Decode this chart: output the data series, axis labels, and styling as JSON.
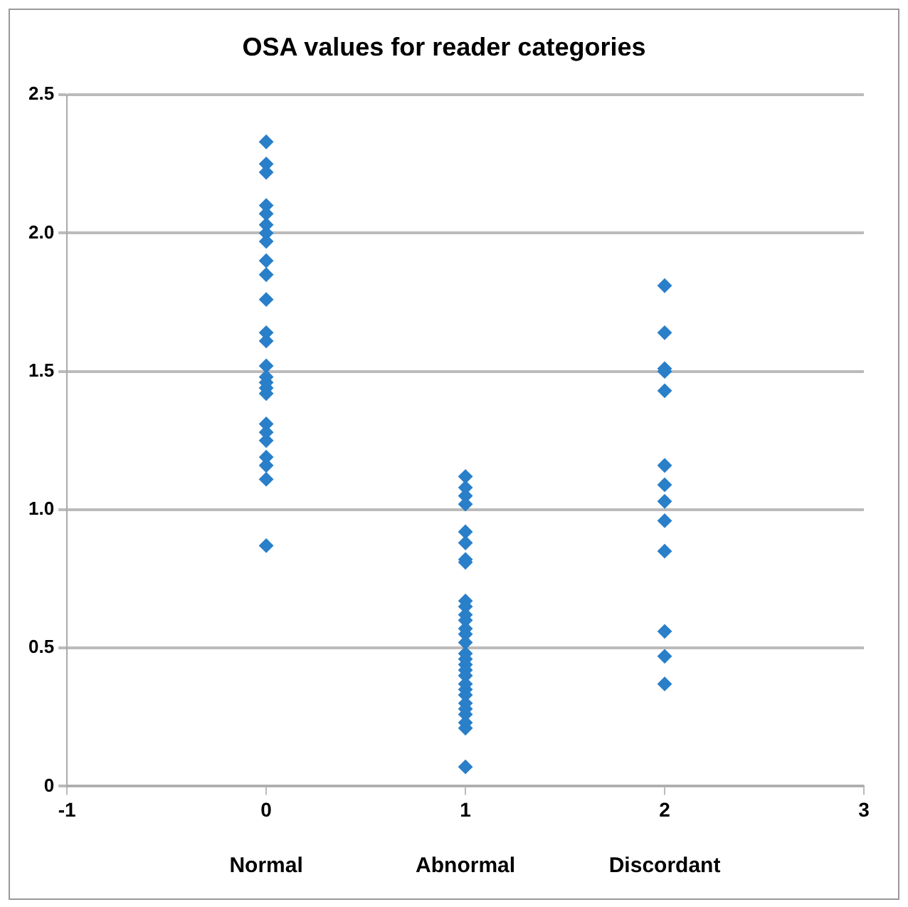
{
  "chart_data": {
    "type": "scatter",
    "title": "OSA values for reader categories",
    "series": [
      {
        "color": "#2a7fc9",
        "x": [
          0,
          0,
          0,
          0,
          0,
          0,
          0,
          0,
          0,
          0,
          0,
          0,
          0,
          0,
          0,
          0,
          0,
          0,
          0,
          0,
          0,
          0,
          0,
          0,
          0,
          1,
          1,
          1,
          1,
          1,
          1,
          1,
          1,
          1,
          1,
          1,
          1,
          1,
          1,
          1,
          1,
          1,
          1,
          1,
          1,
          1,
          1,
          1,
          1,
          1,
          1,
          1,
          1,
          1,
          2,
          2,
          2,
          2,
          2,
          2,
          2,
          2,
          2,
          2,
          2,
          2,
          2
        ],
        "values": [
          2.33,
          2.25,
          2.22,
          2.1,
          2.07,
          2.03,
          2.0,
          1.97,
          1.9,
          1.85,
          1.76,
          1.64,
          1.61,
          1.52,
          1.48,
          1.46,
          1.44,
          1.42,
          1.31,
          1.28,
          1.25,
          1.19,
          1.16,
          1.11,
          0.87,
          1.12,
          1.08,
          1.05,
          1.02,
          0.92,
          0.88,
          0.82,
          0.81,
          0.67,
          0.65,
          0.62,
          0.6,
          0.57,
          0.55,
          0.52,
          0.48,
          0.46,
          0.44,
          0.42,
          0.4,
          0.37,
          0.35,
          0.33,
          0.3,
          0.28,
          0.26,
          0.23,
          0.21,
          0.07,
          1.81,
          1.64,
          1.51,
          1.5,
          1.43,
          1.16,
          1.09,
          1.03,
          0.96,
          0.85,
          0.56,
          0.47,
          0.37
        ]
      }
    ],
    "xlim": [
      -1,
      3
    ],
    "xticks": [
      -1,
      0,
      1,
      2,
      3
    ],
    "ylim": [
      0,
      2.5
    ],
    "yticks": [
      0,
      {
        "value": 0.5,
        "label": "0.5"
      },
      {
        "value": 1,
        "label": "1.0"
      },
      {
        "value": 1.5,
        "label": "1.5"
      },
      {
        "value": 2,
        "label": "2.0"
      },
      {
        "value": 2.5,
        "label": "2.5"
      }
    ],
    "grid": "y",
    "marker": "diamond",
    "legend": false,
    "annotations": [
      "Normal",
      "Abnormal",
      "Discordant"
    ]
  }
}
